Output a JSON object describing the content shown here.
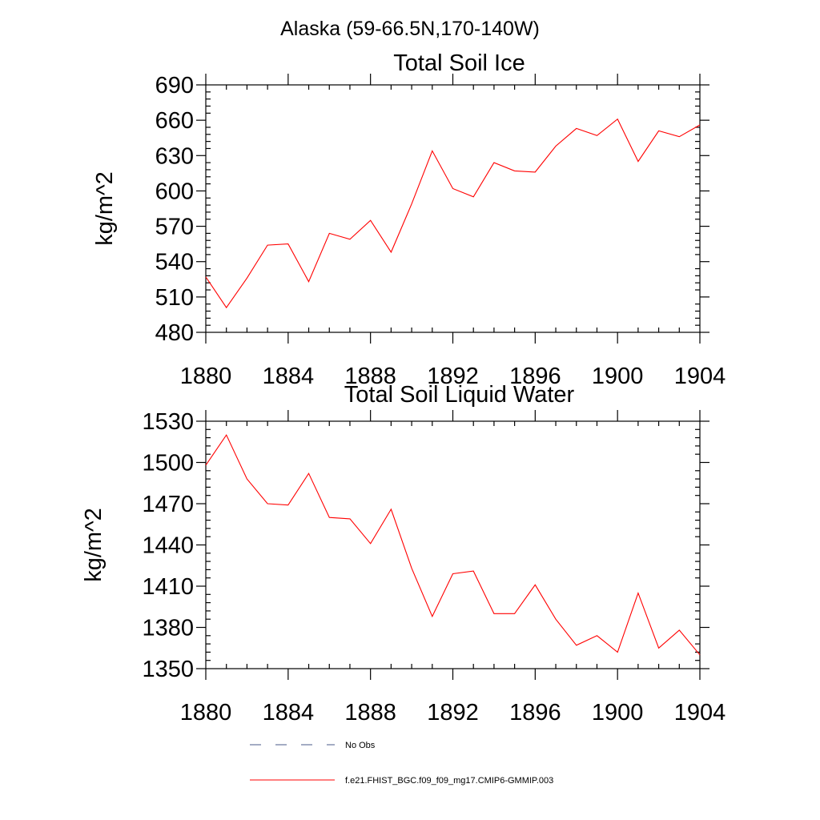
{
  "figure": {
    "title": "Alaska (59-66.5N,170-140W)"
  },
  "chart_data": [
    {
      "type": "line",
      "title": "Total Soil Ice",
      "xlabel": "",
      "ylabel": "kg/m^2",
      "xlim": [
        1880,
        1904
      ],
      "ylim": [
        480,
        690
      ],
      "xticks": [
        1880,
        1884,
        1888,
        1892,
        1896,
        1900,
        1904
      ],
      "yticks": [
        480,
        510,
        540,
        570,
        600,
        630,
        660,
        690
      ],
      "series": [
        {
          "name": "f.e21.FHIST_BGC.f09_f09_mg17.CMIP6-GMMIP.003",
          "color": "#ff0000",
          "x": [
            1880,
            1881,
            1882,
            1883,
            1884,
            1885,
            1886,
            1887,
            1888,
            1889,
            1890,
            1891,
            1892,
            1893,
            1894,
            1895,
            1896,
            1897,
            1898,
            1899,
            1900,
            1901,
            1902,
            1903,
            1904
          ],
          "y": [
            527,
            501,
            526,
            554,
            555,
            523,
            564,
            559,
            575,
            548,
            589,
            634,
            602,
            595,
            624,
            617,
            616,
            638,
            653,
            647,
            661,
            625,
            651,
            646,
            656
          ]
        }
      ]
    },
    {
      "type": "line",
      "title": "Total Soil Liquid Water",
      "xlabel": "",
      "ylabel": "kg/m^2",
      "xlim": [
        1880,
        1904
      ],
      "ylim": [
        1350,
        1530
      ],
      "xticks": [
        1880,
        1884,
        1888,
        1892,
        1896,
        1900,
        1904
      ],
      "yticks": [
        1350,
        1380,
        1410,
        1440,
        1470,
        1500,
        1530
      ],
      "series": [
        {
          "name": "f.e21.FHIST_BGC.f09_f09_mg17.CMIP6-GMMIP.003",
          "color": "#ff0000",
          "x": [
            1880,
            1881,
            1882,
            1883,
            1884,
            1885,
            1886,
            1887,
            1888,
            1889,
            1890,
            1891,
            1892,
            1893,
            1894,
            1895,
            1896,
            1897,
            1898,
            1899,
            1900,
            1901,
            1902,
            1903,
            1904
          ],
          "y": [
            1498,
            1520,
            1488,
            1470,
            1469,
            1492,
            1460,
            1459,
            1441,
            1466,
            1423,
            1388,
            1419,
            1421,
            1390,
            1390,
            1411,
            1386,
            1367,
            1374,
            1362,
            1405,
            1365,
            1378,
            1360
          ]
        }
      ]
    }
  ],
  "legend": {
    "placement": "bottom",
    "items": [
      {
        "label": "No Obs",
        "style": "dashed",
        "color": "#4a5a8a"
      },
      {
        "label": "f.e21.FHIST_BGC.f09_f09_mg17.CMIP6-GMMIP.003",
        "style": "solid",
        "color": "#ff0000"
      }
    ]
  }
}
